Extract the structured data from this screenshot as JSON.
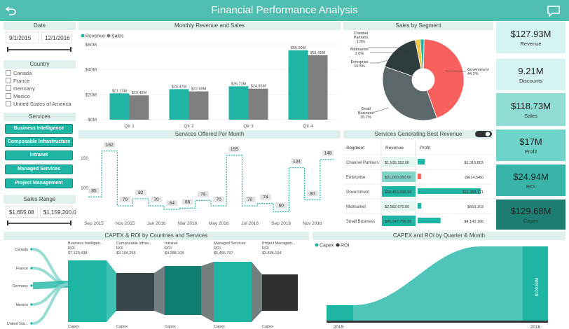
{
  "header": {
    "title": "Financial Performance Analysis",
    "back_icon": "back-arrow-icon",
    "comment_icon": "comment-icon"
  },
  "date_filter": {
    "title": "Date",
    "start": "9/1/2015",
    "end": "12/1/2016"
  },
  "country_filter": {
    "title": "Country",
    "items": [
      "Canada",
      "France",
      "Germany",
      "Mexico",
      "United States of America"
    ]
  },
  "services_filter": {
    "title": "Services",
    "items": [
      "Business Intelligence",
      "Composable Infrastructure",
      "Intranet",
      "Managed Services",
      "Project Management"
    ]
  },
  "sales_range": {
    "title": "Sales Range",
    "min": "$1,655.08",
    "max": "$1,159,200.0"
  },
  "monthly_chart": {
    "title": "Monthly Revenue and Sales",
    "chart_data": {
      "type": "bar",
      "categories": [
        "Qtr 1",
        "Qtr 2",
        "Qtr 3",
        "Qtr 4"
      ],
      "series": [
        {
          "name": "Revenue",
          "values": [
            21.13,
            24.47,
            26.73,
            55.6
          ],
          "labels": [
            "$21.13M",
            "$24.47M",
            "$26.73M",
            "$55.60M"
          ],
          "color": "#1fb5a4"
        },
        {
          "name": "Sales",
          "values": [
            19.49,
            22.69,
            24.85,
            51.69
          ],
          "labels": [
            "$19.49M",
            "$22.69M",
            "$24.85M",
            "$51.69M"
          ],
          "color": "#7f7f7f"
        }
      ],
      "y_ticks": [
        0,
        20,
        40,
        60
      ],
      "y_tick_labels": [
        "$0M",
        "$20M",
        "$40M",
        "$60M"
      ],
      "ylim": [
        0,
        60
      ],
      "legend": "top-left"
    }
  },
  "segment_chart": {
    "title": "Sales by Segment",
    "chart_data": {
      "type": "pie",
      "donut": true,
      "slices": [
        {
          "name": "Government",
          "value": 44.2,
          "label": "Government 44.2%",
          "color": "#f7605c"
        },
        {
          "name": "Small Business",
          "value": 35.7,
          "label": "Small Business 35.7%",
          "color": "#5b6769"
        },
        {
          "name": "Enterprise",
          "value": 16.5,
          "label": "Enterprise 16.5%",
          "color": "#2f3c3e"
        },
        {
          "name": "Midmarket",
          "value": 2.0,
          "label": "Midmarket 2.0%",
          "color": "#f3c63f"
        },
        {
          "name": "Channel Partners",
          "value": 1.5,
          "label": "Channel Partners 1.5%",
          "color": "#1fb5a4"
        }
      ]
    }
  },
  "kpis": [
    {
      "value": "$127.93M",
      "label": "Revenue",
      "bg": "#d5f3f1"
    },
    {
      "value": "9.21M",
      "label": "Discounts",
      "bg": "#d5f3f1"
    },
    {
      "value": "$118.73M",
      "label": "Sales",
      "bg": "#8fdcd3"
    },
    {
      "value": "$17M",
      "label": "Profit",
      "bg": "#6ed3c8"
    },
    {
      "value": "$24.94M",
      "label": "ROI",
      "bg": "#38b5a8"
    },
    {
      "value": "$129.68M",
      "label": "Capex",
      "bg": "#1e7e72"
    }
  ],
  "services_chart": {
    "title": "Services Offered Per Month",
    "chart_data": {
      "type": "line",
      "x": [
        "Sep 2015",
        "Oct 2015",
        "Nov 2015",
        "Dec 2015",
        "Jan 2016",
        "Feb 2016",
        "Mar 2016",
        "Apr 2016",
        "May 2016",
        "Jun 2016",
        "Jul 2016",
        "Aug 2016",
        "Sep 2016",
        "Oct 2016",
        "Nov 2016",
        "Dec 2016"
      ],
      "values": [
        85,
        162,
        70,
        82,
        70,
        64,
        66,
        79,
        70,
        155,
        70,
        74,
        60,
        134,
        80,
        148
      ],
      "x_tick_labels": [
        "Sep 2015",
        "Nov 2015",
        "Jan 2016",
        "Mar 2016",
        "May 2016",
        "Jul 2016",
        "Sep 2016",
        "Nov 2016"
      ],
      "y_ticks": [
        100,
        150
      ],
      "ylim": [
        50,
        170
      ],
      "color": "#1fb5a4"
    }
  },
  "best_revenue": {
    "title": "Services Generating Best Revenue",
    "headers": [
      "Segment",
      "Revenue",
      "Profit"
    ],
    "rows": [
      {
        "segment": "Channel Partners",
        "revenue": "$1,935,162.00",
        "revenue_value": 1935162,
        "profit": "$1,316,803",
        "profit_value": 1316803
      },
      {
        "segment": "Enterprise",
        "revenue": "$21,060,000.00",
        "revenue_value": 21060000,
        "profit": "($614,546)",
        "profit_value": -614546
      },
      {
        "segment": "Government",
        "revenue": "$58,455,066.50",
        "revenue_value": 58455066.5,
        "profit": "$11,388,171",
        "profit_value": 11388171
      },
      {
        "segment": "Midmarket",
        "revenue": "$2,582,670.00",
        "revenue_value": 2582670,
        "profit": "$660,103",
        "profit_value": 660103
      },
      {
        "segment": "Small Business",
        "revenue": "$45,947,700.00",
        "revenue_value": 45947700,
        "profit": "$4,143,166",
        "profit_value": 4143166
      }
    ]
  },
  "capex_countries": {
    "title": "CAPEX & ROI by Countries and Services",
    "countries": [
      "Canada",
      "France",
      "Germany",
      "Mexico",
      "United Sta..."
    ],
    "services": [
      {
        "name": "Business Intelligen...",
        "metric": "ROI",
        "value": "$7,120,438",
        "color": "#1fb5a4"
      },
      {
        "name": "Composable Infras...",
        "metric": "ROI",
        "value": "$3,184,255",
        "color": "#37474a"
      },
      {
        "name": "Intranet",
        "metric": "ROI",
        "value": "$4,288,108",
        "color": "#0f7f73"
      },
      {
        "name": "Managed Services",
        "metric": "ROI",
        "value": "$6,455,797",
        "color": "#1fb5a4"
      },
      {
        "name": "Project Managem...",
        "metric": "ROI",
        "value": "$3,895,104",
        "color": "#2f2f2f"
      }
    ],
    "bottom_label": "Capex"
  },
  "capex_quarter": {
    "title": "CAPEX and ROI by Quarter & Month",
    "legend": [
      "Capex",
      "ROI"
    ],
    "x_labels": [
      "2015",
      "2016"
    ],
    "bar_label": "$100.68M"
  }
}
